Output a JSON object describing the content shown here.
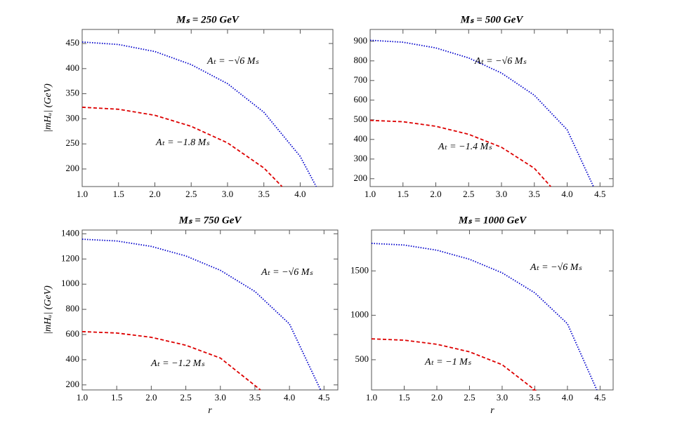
{
  "chart_data": [
    {
      "type": "line",
      "title": "Mₛ = 250 GeV",
      "ylabel": "|mHᵤ| (GeV)",
      "xlim": [
        1,
        4.45
      ],
      "ylim": [
        165,
        478
      ],
      "xticks": [
        {
          "value": 1,
          "label": "1.0"
        },
        1.5,
        {
          "value": 2,
          "label": "2.0"
        },
        2.5,
        {
          "value": 3,
          "label": "3.0"
        },
        3.5,
        {
          "value": 4,
          "label": "4.0"
        }
      ],
      "yticks": [
        200,
        250,
        300,
        350,
        400,
        450
      ],
      "annotations": [
        "Aₜ = −√6 Mₛ",
        "Aₜ = −1.8 Mₛ"
      ],
      "series": [
        {
          "color": "#0000cc",
          "style": "dotted",
          "x": [
            1,
            1.5,
            2,
            2.5,
            3,
            3.5,
            4,
            4.22
          ],
          "values": [
            453,
            448,
            434,
            408,
            370,
            313,
            225,
            165
          ]
        },
        {
          "color": "#dd0000",
          "style": "dashed",
          "x": [
            1,
            1.5,
            2,
            2.5,
            3,
            3.5,
            3.75
          ],
          "values": [
            323,
            319,
            307,
            285,
            252,
            202,
            165
          ]
        }
      ]
    },
    {
      "type": "line",
      "title": "Mₛ = 500 GeV",
      "xlim": [
        1,
        4.7
      ],
      "ylim": [
        160,
        960
      ],
      "xticks": [
        {
          "value": 1,
          "label": "1.0"
        },
        1.5,
        {
          "value": 2,
          "label": "2.0"
        },
        2.5,
        {
          "value": 3,
          "label": "3.0"
        },
        3.5,
        {
          "value": 4,
          "label": "4.0"
        },
        4.5
      ],
      "yticks": [
        200,
        300,
        400,
        500,
        600,
        700,
        800,
        900
      ],
      "annotations": [
        "Aₜ = −√6 Mₛ",
        "Aₜ = −1.4 Mₛ"
      ],
      "series": [
        {
          "color": "#0000cc",
          "style": "dotted",
          "x": [
            1,
            1.5,
            2,
            2.5,
            3,
            3.5,
            4,
            4.4
          ],
          "values": [
            905,
            895,
            866,
            815,
            738,
            625,
            449,
            160
          ]
        },
        {
          "color": "#dd0000",
          "style": "dashed",
          "x": [
            1,
            1.5,
            2,
            2.5,
            3,
            3.5,
            3.75
          ],
          "values": [
            497,
            490,
            467,
            426,
            360,
            253,
            160
          ]
        }
      ]
    },
    {
      "type": "line",
      "title": "Mₛ = 750 GeV",
      "ylabel": "|mHᵤ| (GeV)",
      "xlabel": "r",
      "xlim": [
        1,
        4.7
      ],
      "ylim": [
        160,
        1430
      ],
      "xticks": [
        {
          "value": 1,
          "label": "1.0"
        },
        1.5,
        {
          "value": 2,
          "label": "2.0"
        },
        2.5,
        {
          "value": 3,
          "label": "3.0"
        },
        3.5,
        {
          "value": 4,
          "label": "4.0"
        },
        4.5
      ],
      "yticks": [
        200,
        400,
        600,
        800,
        1000,
        1200,
        1400
      ],
      "annotations": [
        "Aₜ = −√6 Mₛ",
        "Aₜ = −1.2 Mₛ"
      ],
      "series": [
        {
          "color": "#0000cc",
          "style": "dotted",
          "x": [
            1,
            1.5,
            2,
            2.5,
            3,
            3.5,
            4,
            4.45
          ],
          "values": [
            1357,
            1343,
            1300,
            1224,
            1110,
            942,
            684,
            160
          ]
        },
        {
          "color": "#dd0000",
          "style": "dashed",
          "x": [
            1,
            1.5,
            2,
            2.5,
            3,
            3.5,
            3.58
          ],
          "values": [
            623,
            612,
            578,
            515,
            413,
            195,
            160
          ]
        }
      ]
    },
    {
      "type": "line",
      "title": "Mₛ = 1000 GeV",
      "xlabel": "r",
      "xlim": [
        1,
        4.7
      ],
      "ylim": [
        160,
        1960
      ],
      "xticks": [
        {
          "value": 1,
          "label": "1.0"
        },
        1.5,
        {
          "value": 2,
          "label": "2.0"
        },
        2.5,
        {
          "value": 3,
          "label": "3.0"
        },
        3.5,
        {
          "value": 4,
          "label": "4.0"
        },
        4.5
      ],
      "yticks": [
        500,
        1000,
        1500
      ],
      "annotations": [
        "Aₜ = −√6 Mₛ",
        "Aₜ = −1 Mₛ"
      ],
      "series": [
        {
          "color": "#0000cc",
          "style": "dotted",
          "x": [
            1,
            1.5,
            2,
            2.5,
            3,
            3.5,
            4,
            4.45
          ],
          "values": [
            1810,
            1791,
            1733,
            1631,
            1478,
            1253,
            905,
            160
          ]
        },
        {
          "color": "#dd0000",
          "style": "dashed",
          "x": [
            1,
            1.5,
            2,
            2.5,
            3,
            3.5,
            3.45
          ],
          "values": [
            735,
            720,
            674,
            589,
            444,
            160,
            160
          ]
        }
      ]
    }
  ]
}
